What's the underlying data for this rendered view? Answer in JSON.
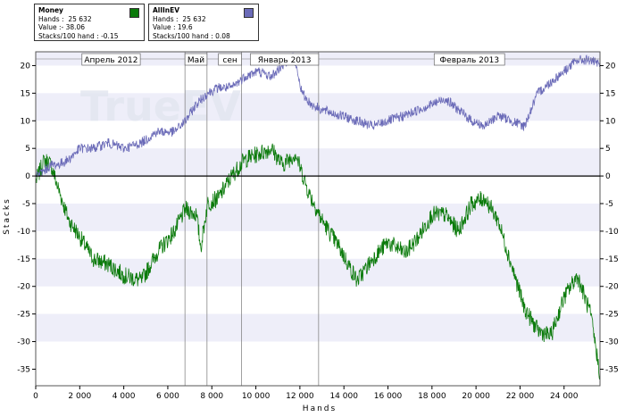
{
  "legend": [
    {
      "title": "Money",
      "hands_label": "Hands :",
      "hands": "25 632",
      "value_label": "Value :",
      "value": "- 38.06",
      "rate_label": "Stacks/100 hand :",
      "rate": "-0.15",
      "color": "#0a7a0a"
    },
    {
      "title": "AllInEV",
      "hands_label": "Hands :",
      "hands": "25 632",
      "value_label": "Value :",
      "value": "19.6",
      "rate_label": "Stacks/100 hand :",
      "rate": "0.08",
      "color": "#6b6bb8"
    }
  ],
  "watermark": "TrueEV",
  "chart_data": {
    "type": "line",
    "xlabel": "Hands",
    "ylabel": "Stacks",
    "xlim": [
      0,
      25632
    ],
    "ylim": [
      -38,
      22.5
    ],
    "x_ticks": [
      0,
      2000,
      4000,
      6000,
      8000,
      10000,
      12000,
      14000,
      16000,
      18000,
      20000,
      22000,
      24000
    ],
    "x_tick_labels": [
      "0",
      "2 000",
      "4 000",
      "6 000",
      "8 000",
      "10 000",
      "12 000",
      "14 000",
      "16 000",
      "18 000",
      "20 000",
      "22 000",
      "24 000"
    ],
    "y_ticks": [
      20,
      15,
      10,
      5,
      0,
      -5,
      -10,
      -15,
      -20,
      -25,
      -30,
      -35
    ],
    "y_tick_labels": [
      "20",
      "15",
      "10",
      "5",
      "0",
      "-5",
      "-10",
      "-15",
      "-20",
      "-25",
      "-30",
      "-35"
    ],
    "periods": [
      {
        "label": "Апрель 2012",
        "start": 2100,
        "end": 4750
      },
      {
        "label": "Май",
        "start": 6780,
        "end": 7780
      },
      {
        "label": "сен",
        "start": 8300,
        "end": 9350
      },
      {
        "label": "Январь 2013",
        "start": 9750,
        "end": 12850
      },
      {
        "label": "Февраль 2013",
        "start": 18100,
        "end": 21300
      }
    ],
    "period_lines": [
      6780,
      7780,
      9350,
      12850
    ],
    "series": [
      {
        "name": "Money",
        "color": "#0a7a0a",
        "x": [
          0,
          400,
          700,
          1000,
          1500,
          2000,
          2600,
          3300,
          4000,
          4800,
          5500,
          6300,
          6800,
          7300,
          7500,
          7800,
          8300,
          8900,
          9500,
          10100,
          10700,
          11200,
          11800,
          12400,
          13000,
          13800,
          14600,
          15300,
          16000,
          16800,
          17400,
          18000,
          18600,
          19200,
          19800,
          20400,
          21000,
          21600,
          22200,
          22800,
          23400,
          24000,
          24600,
          25200,
          25632
        ],
        "values": [
          -1,
          3,
          2,
          -2,
          -8,
          -11,
          -15,
          -16,
          -18,
          -19,
          -14,
          -10,
          -6,
          -7,
          -13,
          -5,
          -4,
          0,
          3,
          4,
          5,
          2,
          4,
          -3,
          -8,
          -13,
          -19,
          -15,
          -12,
          -14,
          -11,
          -7,
          -7,
          -10,
          -5,
          -4,
          -8,
          -16,
          -24,
          -28,
          -29,
          -22,
          -18,
          -25,
          -36
        ]
      },
      {
        "name": "AllInEV",
        "color": "#6b6bb8",
        "x": [
          0,
          400,
          700,
          1000,
          1500,
          2000,
          2600,
          3300,
          4000,
          4800,
          5500,
          6300,
          6800,
          7300,
          7800,
          8300,
          8900,
          9500,
          10100,
          10700,
          11200,
          11700,
          12100,
          12500,
          13000,
          13800,
          14600,
          15300,
          16000,
          16800,
          17400,
          18000,
          18600,
          19200,
          19800,
          20400,
          21000,
          21600,
          22200,
          22800,
          23400,
          24000,
          24600,
          25200,
          25632
        ],
        "values": [
          0,
          1,
          2,
          2,
          3,
          5,
          5,
          6,
          5,
          6,
          8,
          8,
          10,
          13,
          15,
          16,
          16,
          18,
          19,
          18,
          20,
          22,
          15,
          13,
          12,
          11,
          10,
          9,
          10,
          11,
          12,
          13,
          14,
          12,
          10,
          9,
          11,
          10,
          9,
          15,
          17,
          19,
          21,
          21,
          20
        ]
      }
    ]
  }
}
